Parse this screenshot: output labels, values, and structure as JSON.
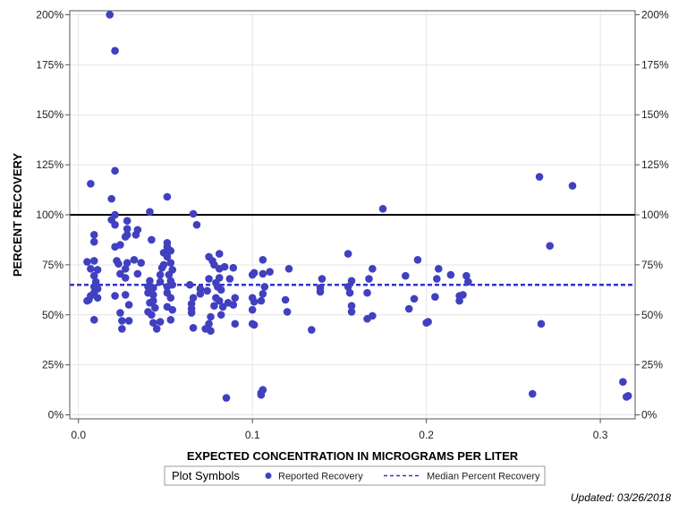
{
  "chart_data": {
    "type": "scatter",
    "title": "",
    "xlabel": "EXPECTED CONCENTRATION IN MICROGRAMS PER LITER",
    "ylabel": "PERCENT RECOVERY",
    "xlim": [
      -0.005,
      0.32
    ],
    "ylim": [
      -2,
      202
    ],
    "x_ticks": [
      0.0,
      0.1,
      0.2,
      0.3
    ],
    "x_tick_labels": [
      "0.0",
      "0.1",
      "0.2",
      "0.3"
    ],
    "y_ticks": [
      0,
      25,
      50,
      75,
      100,
      125,
      150,
      175,
      200
    ],
    "y_tick_labels": [
      "0%",
      "25%",
      "50%",
      "75%",
      "100%",
      "125%",
      "150%",
      "175%",
      "200%"
    ],
    "grid": true,
    "reference_line": {
      "name": "100% reference",
      "y": 100,
      "color": "#000000"
    },
    "median_line": {
      "name": "Median Percent Recovery",
      "y": 65,
      "color": "#3333cc"
    },
    "series": [
      {
        "name": "Reported Recovery",
        "color": "#4040c0",
        "points": [
          [
            0.018,
            200
          ],
          [
            0.021,
            182
          ],
          [
            0.021,
            122
          ],
          [
            0.007,
            115.5
          ],
          [
            0.019,
            108
          ],
          [
            0.051,
            109
          ],
          [
            0.041,
            101.5
          ],
          [
            0.021,
            100
          ],
          [
            0.019,
            97.5
          ],
          [
            0.028,
            97
          ],
          [
            0.021,
            95
          ],
          [
            0.066,
            100.5
          ],
          [
            0.068,
            95
          ],
          [
            0.028,
            93
          ],
          [
            0.034,
            92.5
          ],
          [
            0.028,
            90
          ],
          [
            0.033,
            90
          ],
          [
            0.009,
            90
          ],
          [
            0.027,
            89
          ],
          [
            0.042,
            87.5
          ],
          [
            0.009,
            86.5
          ],
          [
            0.051,
            86
          ],
          [
            0.024,
            85
          ],
          [
            0.021,
            84
          ],
          [
            0.051,
            84
          ],
          [
            0.049,
            81
          ],
          [
            0.053,
            82
          ],
          [
            0.051,
            79
          ],
          [
            0.005,
            76.5
          ],
          [
            0.009,
            77
          ],
          [
            0.022,
            77
          ],
          [
            0.023,
            75.5
          ],
          [
            0.028,
            76
          ],
          [
            0.032,
            77.5
          ],
          [
            0.036,
            76
          ],
          [
            0.049,
            75
          ],
          [
            0.048,
            73.5
          ],
          [
            0.053,
            76
          ],
          [
            0.077,
            77
          ],
          [
            0.081,
            80.5
          ],
          [
            0.075,
            79
          ],
          [
            0.007,
            73
          ],
          [
            0.011,
            72.5
          ],
          [
            0.024,
            70.5
          ],
          [
            0.027,
            73
          ],
          [
            0.034,
            70.5
          ],
          [
            0.047,
            70
          ],
          [
            0.052,
            70
          ],
          [
            0.054,
            72.5
          ],
          [
            0.081,
            73
          ],
          [
            0.078,
            75
          ],
          [
            0.084,
            74
          ],
          [
            0.089,
            73.5
          ],
          [
            0.009,
            69.5
          ],
          [
            0.01,
            66.5
          ],
          [
            0.027,
            68.5
          ],
          [
            0.041,
            67
          ],
          [
            0.047,
            66.5
          ],
          [
            0.053,
            67
          ],
          [
            0.075,
            68
          ],
          [
            0.081,
            68.5
          ],
          [
            0.079,
            66
          ],
          [
            0.087,
            68
          ],
          [
            0.009,
            64
          ],
          [
            0.011,
            63
          ],
          [
            0.04,
            64
          ],
          [
            0.043,
            63.5
          ],
          [
            0.051,
            64
          ],
          [
            0.054,
            65
          ],
          [
            0.064,
            65
          ],
          [
            0.07,
            63
          ],
          [
            0.074,
            62
          ],
          [
            0.08,
            64
          ],
          [
            0.082,
            62.5
          ],
          [
            0.101,
            71
          ],
          [
            0.1,
            70
          ],
          [
            0.106,
            77.5
          ],
          [
            0.106,
            70.5
          ],
          [
            0.11,
            71.5
          ],
          [
            0.107,
            64
          ],
          [
            0.121,
            73
          ],
          [
            0.007,
            59.5
          ],
          [
            0.009,
            61
          ],
          [
            0.011,
            58.5
          ],
          [
            0.021,
            59.5
          ],
          [
            0.027,
            60
          ],
          [
            0.04,
            61
          ],
          [
            0.043,
            60
          ],
          [
            0.051,
            61
          ],
          [
            0.043,
            57
          ],
          [
            0.041,
            56
          ],
          [
            0.053,
            58.5
          ],
          [
            0.065,
            55.5
          ],
          [
            0.066,
            58.5
          ],
          [
            0.07,
            60.5
          ],
          [
            0.079,
            58.5
          ],
          [
            0.081,
            57
          ],
          [
            0.086,
            56
          ],
          [
            0.09,
            58.5
          ],
          [
            0.1,
            58.5
          ],
          [
            0.101,
            56.5
          ],
          [
            0.105,
            57
          ],
          [
            0.106,
            60.5
          ],
          [
            0.119,
            57.5
          ],
          [
            0.005,
            57
          ],
          [
            0.006,
            57.5
          ],
          [
            0.029,
            55
          ],
          [
            0.044,
            53.5
          ],
          [
            0.051,
            54
          ],
          [
            0.054,
            52.5
          ],
          [
            0.065,
            53
          ],
          [
            0.078,
            54.5
          ],
          [
            0.083,
            54
          ],
          [
            0.089,
            55
          ],
          [
            0.1,
            52.5
          ],
          [
            0.12,
            51.5
          ],
          [
            0.024,
            51
          ],
          [
            0.04,
            51.5
          ],
          [
            0.042,
            50
          ],
          [
            0.065,
            51
          ],
          [
            0.076,
            49
          ],
          [
            0.082,
            50
          ],
          [
            0.009,
            47.5
          ],
          [
            0.025,
            47
          ],
          [
            0.029,
            47
          ],
          [
            0.047,
            46.5
          ],
          [
            0.053,
            47.5
          ],
          [
            0.043,
            46
          ],
          [
            0.075,
            45.5
          ],
          [
            0.09,
            45.5
          ],
          [
            0.1,
            45.5
          ],
          [
            0.101,
            45
          ],
          [
            0.025,
            43
          ],
          [
            0.045,
            43
          ],
          [
            0.066,
            43.5
          ],
          [
            0.073,
            43
          ],
          [
            0.076,
            42
          ],
          [
            0.134,
            42.5
          ],
          [
            0.14,
            68
          ],
          [
            0.139,
            63.5
          ],
          [
            0.139,
            61.5
          ],
          [
            0.155,
            80.5
          ],
          [
            0.157,
            67
          ],
          [
            0.155,
            64
          ],
          [
            0.156,
            61
          ],
          [
            0.157,
            54.5
          ],
          [
            0.157,
            51.5
          ],
          [
            0.167,
            68
          ],
          [
            0.169,
            73
          ],
          [
            0.166,
            61
          ],
          [
            0.166,
            48
          ],
          [
            0.169,
            49.5
          ],
          [
            0.175,
            103
          ],
          [
            0.188,
            69.5
          ],
          [
            0.195,
            77.5
          ],
          [
            0.193,
            58
          ],
          [
            0.19,
            53
          ],
          [
            0.2,
            46
          ],
          [
            0.201,
            46.5
          ],
          [
            0.205,
            59
          ],
          [
            0.206,
            68
          ],
          [
            0.207,
            73
          ],
          [
            0.214,
            70
          ],
          [
            0.221,
            60
          ],
          [
            0.219,
            59.5
          ],
          [
            0.219,
            57
          ],
          [
            0.223,
            69.5
          ],
          [
            0.224,
            66.5
          ],
          [
            0.265,
            119
          ],
          [
            0.284,
            114.5
          ],
          [
            0.271,
            84.5
          ],
          [
            0.266,
            45.5
          ],
          [
            0.261,
            10.5
          ],
          [
            0.313,
            16.5
          ],
          [
            0.315,
            9
          ],
          [
            0.316,
            9.5
          ],
          [
            0.085,
            8.5
          ],
          [
            0.105,
            10
          ],
          [
            0.105,
            11
          ],
          [
            0.106,
            12.5
          ]
        ]
      }
    ],
    "legend": {
      "title": "Plot Symbols",
      "position": "bottom-center",
      "entries": [
        "Reported Recovery",
        "Median Percent Recovery"
      ]
    }
  },
  "footer": {
    "updated": "Updated: 03/26/2018"
  }
}
